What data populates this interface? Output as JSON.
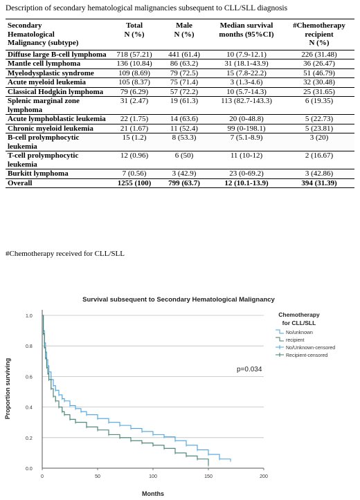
{
  "table": {
    "caption": "Description of secondary hematological malignancies subsequent to CLL/SLL diagnosis",
    "headers": [
      [
        "Secondary",
        "Hematological",
        "Malignancy (subtype)"
      ],
      [
        "Total",
        "N (%)"
      ],
      [
        "Male",
        "N (%)"
      ],
      [
        "Median survival",
        "months (95%CI)"
      ],
      [
        "#Chemotherapy",
        "recipient",
        "N (%)"
      ]
    ],
    "rows": [
      [
        "Diffuse large B-cell lymphoma",
        "718 (57.21)",
        "441 (61.4)",
        "10 (7.9-12.1)",
        "226 (31.48)"
      ],
      [
        "Mantle cell lymphoma",
        "136 (10.84)",
        "86 (63.2)",
        "31 (18.1-43.9)",
        "36 (26.47)"
      ],
      [
        "Myelodysplastic syndrome",
        "109 (8.69)",
        "79 (72.5)",
        "15 (7.8-22.2)",
        "51 (46.79)"
      ],
      [
        "Acute myeloid leukemia",
        "105 (8.37)",
        "75 (71.4)",
        "3 (1.3-4.6)",
        "32 (30.48)"
      ],
      [
        "Classical Hodgkin lymphoma",
        "79 (6.29)",
        "57 (72.2)",
        "10 (5.7-14.3)",
        "25 (31.65)"
      ],
      [
        "Splenic marginal zone lymphoma",
        "31 (2.47)",
        "19 (61.3)",
        "113 (82.7-143.3)",
        "6 (19.35)"
      ],
      [
        "Acute lymphoblastic leukemia",
        "22 (1.75)",
        "14 (63.6)",
        "20 (0-48.8)",
        "5 (22.73)"
      ],
      [
        "Chronic myeloid leukemia",
        "21 (1.67)",
        "11 (52.4)",
        "99 (0-198.1)",
        "5 (23.81)"
      ],
      [
        "B-cell prolymphocytic leukemia",
        "15 (1.2)",
        "8 (53.3)",
        "7 (5.1-8.9)",
        "3 (20)"
      ],
      [
        "T-cell prolymphocytic leukemia",
        "12 (0.96)",
        "6 (50)",
        "11 (10-12)",
        "2 (16.67)"
      ],
      [
        "Burkitt lymphoma",
        "7 (0.56)",
        "3 (42.9)",
        "23 (0-69.2)",
        "3 (42.86)"
      ],
      [
        "Overall",
        "1255 (100)",
        "799 (63.7)",
        "12 (10.1-13.9)",
        "394 (31.39)"
      ]
    ],
    "footnote": "#Chemotherapy received for CLL/SLL"
  },
  "chart_data": {
    "type": "line",
    "title": "Survival subsequent to Secondary Hematological Malignancy",
    "xlabel": "Months",
    "ylabel": "Proportion surviving",
    "xlim": [
      0,
      200
    ],
    "ylim": [
      0,
      1.0
    ],
    "xticks": [
      "0",
      "50",
      "100",
      "150",
      "200"
    ],
    "yticks": [
      "0.0",
      "0.2",
      "0.4",
      "0.6",
      "0.8",
      "1.0"
    ],
    "grid": true,
    "annotation": "p=0.034",
    "legend": {
      "title_line1": "Chemotherapy",
      "title_line2": "for CLL/SLL",
      "placement": "right",
      "entries": [
        "No/unknown",
        "recipient",
        "No/Unknown-censored",
        "Recipient-censored"
      ]
    },
    "colors": {
      "no_unknown": "#4aa3df",
      "recipient": "#3d7d6e"
    },
    "series": [
      {
        "name": "No/unknown",
        "x": [
          0,
          1,
          2,
          3,
          4,
          5,
          6,
          8,
          10,
          12,
          15,
          18,
          20,
          25,
          30,
          35,
          40,
          50,
          60,
          70,
          80,
          90,
          100,
          110,
          120,
          130,
          140,
          150,
          160,
          170
        ],
        "y": [
          1.0,
          0.9,
          0.82,
          0.76,
          0.71,
          0.67,
          0.63,
          0.58,
          0.54,
          0.51,
          0.48,
          0.455,
          0.44,
          0.41,
          0.39,
          0.37,
          0.35,
          0.325,
          0.3,
          0.28,
          0.26,
          0.24,
          0.22,
          0.205,
          0.18,
          0.15,
          0.12,
          0.09,
          0.06,
          0.05
        ]
      },
      {
        "name": "recipient",
        "x": [
          0,
          1,
          2,
          3,
          4,
          5,
          6,
          8,
          10,
          12,
          15,
          18,
          20,
          25,
          30,
          40,
          50,
          60,
          70,
          80,
          90,
          100,
          110,
          120,
          130,
          140,
          150
        ],
        "y": [
          1.0,
          0.88,
          0.79,
          0.72,
          0.66,
          0.62,
          0.58,
          0.52,
          0.47,
          0.44,
          0.4,
          0.37,
          0.35,
          0.32,
          0.3,
          0.27,
          0.25,
          0.22,
          0.2,
          0.18,
          0.165,
          0.15,
          0.13,
          0.1,
          0.08,
          0.06,
          0.02
        ]
      }
    ]
  }
}
